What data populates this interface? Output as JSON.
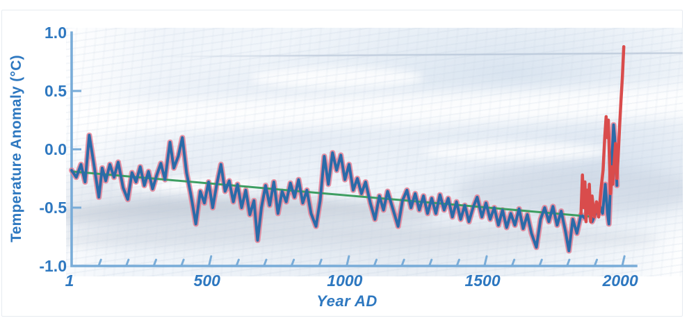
{
  "colors": {
    "label_blue": "#2e78c0",
    "axis_blue": "#79acd8",
    "proxy_blue": "#2a6ba8",
    "halo_pink": "#e2798f",
    "instrumental_red": "#d94c4c",
    "trend_green": "#3e9e62",
    "background_ice": "#e9eff6"
  },
  "chart_data": {
    "type": "line",
    "title": "",
    "xlabel": "Year AD",
    "ylabel": "Temperature Anomaly (°C)",
    "xlim": [
      1,
      2050
    ],
    "ylim": [
      -1.0,
      1.0
    ],
    "grid": false,
    "legend": "none",
    "x_ticks": {
      "minor_start": 100,
      "minor_end": 2000,
      "minor_step": 100,
      "major": [
        500,
        1000,
        1500,
        2000
      ],
      "labels": [
        {
          "year": 1,
          "label": "1"
        },
        {
          "year": 500,
          "label": "500"
        },
        {
          "year": 1000,
          "label": "1000"
        },
        {
          "year": 1500,
          "label": "1500"
        },
        {
          "year": 2000,
          "label": "2000"
        }
      ]
    },
    "y_ticks": {
      "marked": [
        0.5,
        0.0,
        -0.5
      ],
      "labeled": [
        {
          "value": 1.0,
          "label": "1.0"
        },
        {
          "value": 0.5,
          "label": "0.5"
        },
        {
          "value": 0.0,
          "label": "0.0"
        },
        {
          "value": -0.5,
          "label": "-0.5"
        },
        {
          "value": -1.0,
          "label": "-1.0"
        }
      ]
    },
    "series": [
      {
        "name": "proxy_reconstruction",
        "color": "#2a6ba8",
        "halo_color": "#e2798f",
        "points": [
          [
            1,
            -0.18
          ],
          [
            18,
            -0.24
          ],
          [
            35,
            -0.13
          ],
          [
            50,
            -0.28
          ],
          [
            65,
            0.12
          ],
          [
            80,
            -0.1
          ],
          [
            100,
            -0.41
          ],
          [
            112,
            -0.16
          ],
          [
            125,
            -0.27
          ],
          [
            140,
            -0.13
          ],
          [
            155,
            -0.24
          ],
          [
            170,
            -0.11
          ],
          [
            188,
            -0.33
          ],
          [
            205,
            -0.43
          ],
          [
            220,
            -0.2
          ],
          [
            235,
            -0.28
          ],
          [
            250,
            -0.15
          ],
          [
            265,
            -0.31
          ],
          [
            280,
            -0.19
          ],
          [
            295,
            -0.34
          ],
          [
            310,
            -0.22
          ],
          [
            325,
            -0.12
          ],
          [
            340,
            -0.26
          ],
          [
            358,
            0.06
          ],
          [
            372,
            -0.16
          ],
          [
            388,
            -0.06
          ],
          [
            403,
            0.1
          ],
          [
            418,
            -0.2
          ],
          [
            433,
            -0.38
          ],
          [
            452,
            -0.64
          ],
          [
            468,
            -0.36
          ],
          [
            483,
            -0.46
          ],
          [
            498,
            -0.28
          ],
          [
            513,
            -0.5
          ],
          [
            528,
            -0.3
          ],
          [
            543,
            -0.13
          ],
          [
            558,
            -0.36
          ],
          [
            573,
            -0.27
          ],
          [
            588,
            -0.45
          ],
          [
            603,
            -0.3
          ],
          [
            618,
            -0.5
          ],
          [
            633,
            -0.35
          ],
          [
            648,
            -0.56
          ],
          [
            663,
            -0.44
          ],
          [
            676,
            -0.78
          ],
          [
            690,
            -0.5
          ],
          [
            705,
            -0.31
          ],
          [
            720,
            -0.48
          ],
          [
            735,
            -0.28
          ],
          [
            750,
            -0.55
          ],
          [
            765,
            -0.36
          ],
          [
            780,
            -0.45
          ],
          [
            795,
            -0.29
          ],
          [
            810,
            -0.41
          ],
          [
            825,
            -0.26
          ],
          [
            840,
            -0.46
          ],
          [
            855,
            -0.35
          ],
          [
            870,
            -0.55
          ],
          [
            888,
            -0.66
          ],
          [
            903,
            -0.44
          ],
          [
            918,
            -0.06
          ],
          [
            933,
            -0.3
          ],
          [
            948,
            -0.03
          ],
          [
            963,
            -0.18
          ],
          [
            978,
            -0.05
          ],
          [
            993,
            -0.26
          ],
          [
            1008,
            -0.13
          ],
          [
            1023,
            -0.35
          ],
          [
            1038,
            -0.25
          ],
          [
            1053,
            -0.38
          ],
          [
            1068,
            -0.28
          ],
          [
            1085,
            -0.46
          ],
          [
            1102,
            -0.6
          ],
          [
            1118,
            -0.4
          ],
          [
            1133,
            -0.52
          ],
          [
            1148,
            -0.36
          ],
          [
            1163,
            -0.48
          ],
          [
            1186,
            -0.66
          ],
          [
            1202,
            -0.44
          ],
          [
            1218,
            -0.35
          ],
          [
            1233,
            -0.5
          ],
          [
            1248,
            -0.38
          ],
          [
            1263,
            -0.52
          ],
          [
            1278,
            -0.4
          ],
          [
            1293,
            -0.55
          ],
          [
            1308,
            -0.42
          ],
          [
            1323,
            -0.55
          ],
          [
            1338,
            -0.39
          ],
          [
            1353,
            -0.52
          ],
          [
            1368,
            -0.42
          ],
          [
            1383,
            -0.58
          ],
          [
            1398,
            -0.45
          ],
          [
            1413,
            -0.6
          ],
          [
            1428,
            -0.48
          ],
          [
            1443,
            -0.62
          ],
          [
            1458,
            -0.5
          ],
          [
            1473,
            -0.41
          ],
          [
            1490,
            -0.58
          ],
          [
            1505,
            -0.46
          ],
          [
            1520,
            -0.6
          ],
          [
            1535,
            -0.5
          ],
          [
            1550,
            -0.65
          ],
          [
            1565,
            -0.52
          ],
          [
            1580,
            -0.67
          ],
          [
            1595,
            -0.55
          ],
          [
            1610,
            -0.65
          ],
          [
            1625,
            -0.51
          ],
          [
            1640,
            -0.68
          ],
          [
            1655,
            -0.56
          ],
          [
            1670,
            -0.72
          ],
          [
            1688,
            -0.84
          ],
          [
            1703,
            -0.6
          ],
          [
            1718,
            -0.5
          ],
          [
            1733,
            -0.62
          ],
          [
            1748,
            -0.49
          ],
          [
            1763,
            -0.65
          ],
          [
            1778,
            -0.53
          ],
          [
            1793,
            -0.7
          ],
          [
            1806,
            -0.87
          ],
          [
            1820,
            -0.6
          ],
          [
            1835,
            -0.72
          ],
          [
            1850,
            -0.56
          ],
          [
            1863,
            -0.59
          ],
          [
            1877,
            -0.5
          ],
          [
            1890,
            -0.62
          ],
          [
            1903,
            -0.55
          ],
          [
            1916,
            -0.47
          ],
          [
            1928,
            -0.55
          ],
          [
            1938,
            -0.3
          ],
          [
            1946,
            -0.55
          ],
          [
            1951,
            -0.64
          ],
          [
            1956,
            -0.35
          ],
          [
            1960,
            -0.15
          ],
          [
            1964,
            0.02
          ],
          [
            1968,
            0.21
          ],
          [
            1972,
            0.1
          ],
          [
            1976,
            -0.05
          ],
          [
            1980,
            -0.31
          ]
        ]
      },
      {
        "name": "trend",
        "color": "#3e9e62",
        "points": [
          [
            1,
            -0.19
          ],
          [
            1878,
            -0.575
          ]
        ]
      },
      {
        "name": "instrumental",
        "color": "#d94c4c",
        "points": [
          [
            1850,
            -0.55
          ],
          [
            1855,
            -0.22
          ],
          [
            1860,
            -0.5
          ],
          [
            1864,
            -0.28
          ],
          [
            1868,
            -0.62
          ],
          [
            1872,
            -0.35
          ],
          [
            1876,
            -0.55
          ],
          [
            1880,
            -0.3
          ],
          [
            1885,
            -0.62
          ],
          [
            1890,
            -0.4
          ],
          [
            1898,
            -0.58
          ],
          [
            1906,
            -0.45
          ],
          [
            1914,
            -0.58
          ],
          [
            1922,
            -0.35
          ],
          [
            1930,
            -0.18
          ],
          [
            1936,
            0.1
          ],
          [
            1941,
            0.28
          ],
          [
            1945,
            0.1
          ],
          [
            1949,
            0.25
          ],
          [
            1953,
            -0.1
          ],
          [
            1957,
            -0.38
          ],
          [
            1961,
            -0.15
          ],
          [
            1965,
            -0.3
          ],
          [
            1970,
            -0.12
          ],
          [
            1975,
            0.05
          ],
          [
            1980,
            -0.25
          ],
          [
            1985,
            -0.05
          ],
          [
            1990,
            0.2
          ],
          [
            1995,
            0.42
          ],
          [
            2000,
            0.62
          ],
          [
            2005,
            0.88
          ]
        ]
      }
    ]
  }
}
